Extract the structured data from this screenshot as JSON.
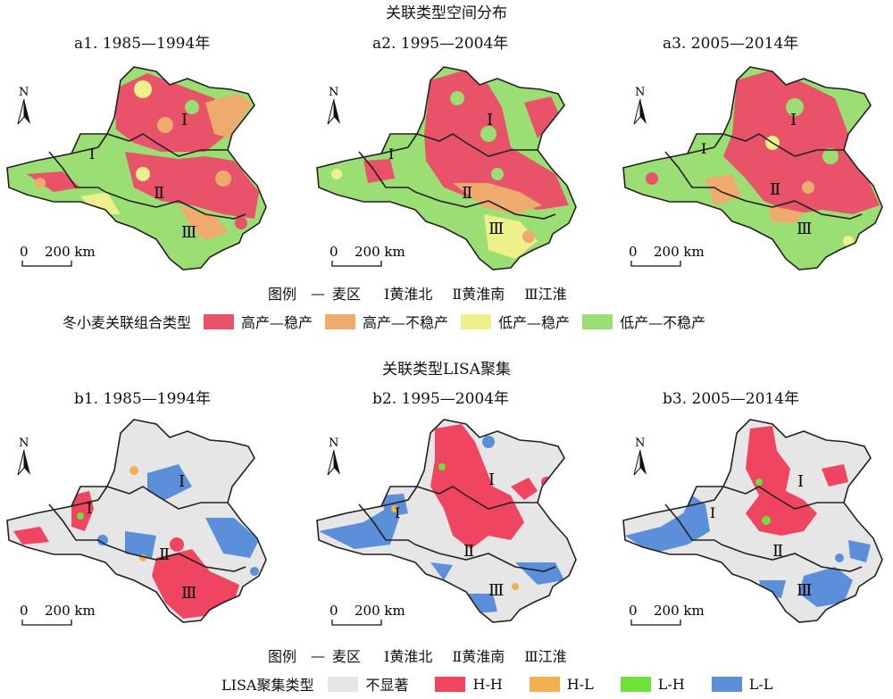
{
  "top": {
    "title": "关联类型空间分布",
    "panels": [
      {
        "label": "a1. 1985—1994年"
      },
      {
        "label": "a2. 1995—2004年"
      },
      {
        "label": "a3. 2005—2014年"
      }
    ],
    "legend_title": "冬小麦关联组合类型",
    "legend": [
      {
        "label": "高产—稳产",
        "color": "#e8536a"
      },
      {
        "label": "高产—不稳产",
        "color": "#eeab6d"
      },
      {
        "label": "低产—稳产",
        "color": "#eef08c"
      },
      {
        "label": "低产—不稳产",
        "color": "#9bde74"
      }
    ]
  },
  "bottom": {
    "title": "关联类型LISA聚集",
    "panels": [
      {
        "label": "b1. 1985—1994年"
      },
      {
        "label": "b2. 1995—2004年"
      },
      {
        "label": "b3. 2005—2014年"
      }
    ],
    "legend_title": "LISA聚集类型",
    "legend": [
      {
        "label": "不显著",
        "color": "#e6e6e6"
      },
      {
        "label": "H-H",
        "color": "#ef4560"
      },
      {
        "label": "H-L",
        "color": "#f2b04e"
      },
      {
        "label": "L-H",
        "color": "#6ee23a"
      },
      {
        "label": "L-L",
        "color": "#5b8fd9"
      }
    ]
  },
  "regions_legend": {
    "prefix": "图例",
    "line_symbol": "—",
    "line_label": "麦区",
    "regions": [
      "Ⅰ黄淮北",
      "Ⅱ黄淮南",
      "Ⅲ江淮"
    ]
  },
  "map_labels": {
    "r1": "Ⅰ",
    "r2": "Ⅱ",
    "r3": "Ⅲ",
    "north": "N"
  },
  "scale_bar": {
    "zero": "0",
    "value": "200 km"
  }
}
